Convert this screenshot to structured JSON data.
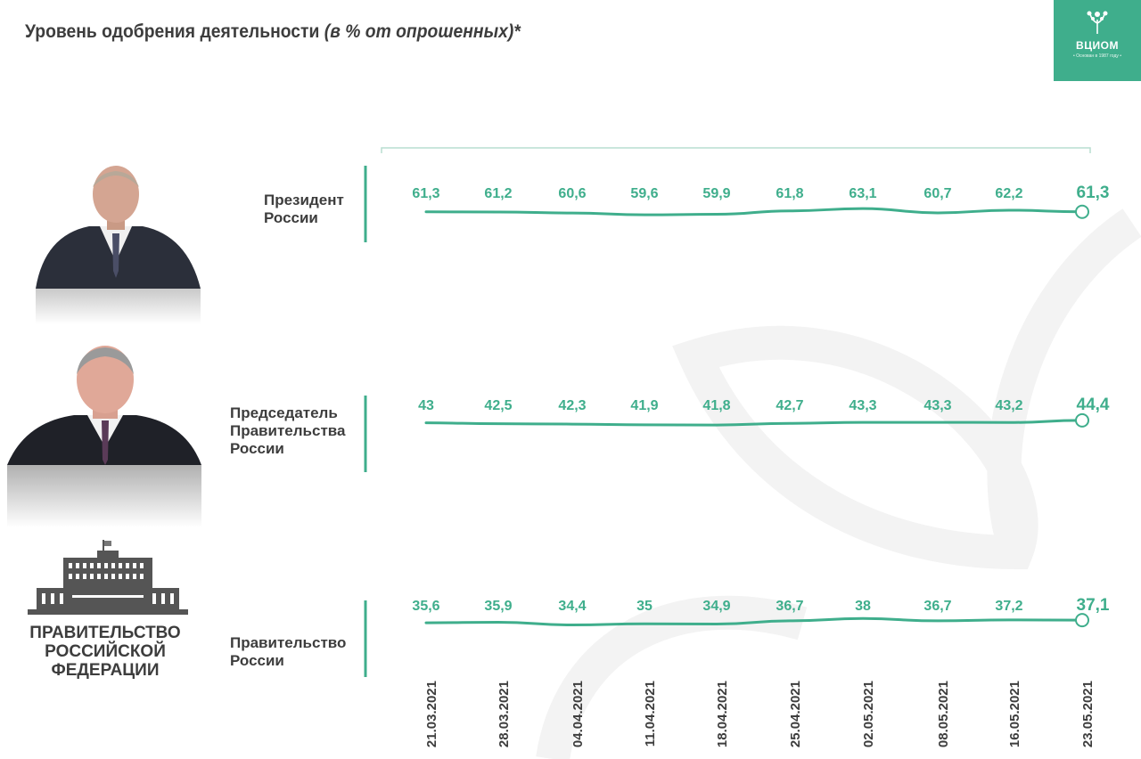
{
  "header": {
    "title_main": "Уровень одобрения деятельности",
    "title_sub": "(в % от опрошенных)*"
  },
  "logo": {
    "name": "ВЦИОМ",
    "since": "• Основан в 1987 году •"
  },
  "rows": [
    {
      "label_lines": [
        "Президент",
        "России"
      ]
    },
    {
      "label_lines": [
        "Председатель",
        "Правительства",
        "России"
      ]
    },
    {
      "label_lines": [
        "Правительство",
        "России"
      ],
      "emblem_lines": [
        "ПРАВИТЕЛЬСТВО",
        "РОССИЙСКОЙ",
        "ФЕДЕРАЦИИ"
      ]
    }
  ],
  "colors": {
    "accent": "#3fae8c",
    "text": "#3d3d3d",
    "watermark": "#f3f3f3"
  },
  "chart_data": {
    "type": "line",
    "categories": [
      "21.03.2021",
      "28.03.2021",
      "04.04.2021",
      "11.04.2021",
      "18.04.2021",
      "25.04.2021",
      "02.05.2021",
      "08.05.2021",
      "16.05.2021",
      "23.05.2021"
    ],
    "series": [
      {
        "name": "Президент России",
        "values": [
          61.3,
          61.2,
          60.6,
          59.6,
          59.9,
          61.8,
          63.1,
          60.7,
          62.2,
          61.3
        ],
        "labels": [
          "61,3",
          "61,2",
          "60,6",
          "59,6",
          "59,9",
          "61,8",
          "63,1",
          "60,7",
          "62,2",
          "61,3"
        ]
      },
      {
        "name": "Председатель Правительства России",
        "values": [
          43,
          42.5,
          42.3,
          41.9,
          41.8,
          42.7,
          43.3,
          43.3,
          43.2,
          44.4
        ],
        "labels": [
          "43",
          "42,5",
          "42,3",
          "41,9",
          "41,8",
          "42,7",
          "43,3",
          "43,3",
          "43,2",
          "44,4"
        ]
      },
      {
        "name": "Правительство России",
        "values": [
          35.6,
          35.9,
          34.4,
          35,
          34.9,
          36.7,
          38,
          36.7,
          37.2,
          37.1
        ],
        "labels": [
          "35,6",
          "35,9",
          "34,4",
          "35",
          "34,9",
          "36,7",
          "38",
          "36,7",
          "37,2",
          "37,1"
        ]
      }
    ],
    "title": "Уровень одобрения деятельности (в % от опрошенных)*",
    "xlabel": "",
    "ylabel": "",
    "grid": false,
    "legend": "none"
  }
}
